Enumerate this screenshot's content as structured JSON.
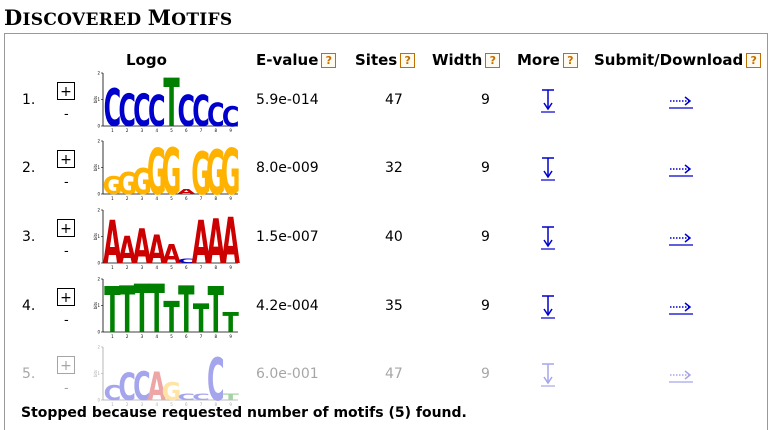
{
  "section": {
    "title_cap1": "D",
    "title_rest1": "ISCOVERED ",
    "title_cap2": "M",
    "title_rest2": "OTIFS"
  },
  "headers": {
    "logo": "Logo",
    "evalue": "E-value",
    "sites": "Sites",
    "width": "Width",
    "more": "More",
    "submit": "Submit/Download",
    "help_glyph": "?"
  },
  "toggle": {
    "plus": "+",
    "minus": "-"
  },
  "logo_axis": {
    "ylabel": "bits"
  },
  "motifs": [
    {
      "index": "1.",
      "evalue": "5.9e-014",
      "sites": "47",
      "width": "9",
      "faded": false,
      "letters": [
        [
          "C",
          0.72
        ],
        [
          "C",
          0.62
        ],
        [
          "C",
          0.62
        ],
        [
          "C",
          0.6
        ],
        [
          "T",
          0.92
        ],
        [
          "C",
          0.6
        ],
        [
          "C",
          0.6
        ],
        [
          "C",
          0.45
        ],
        [
          "C",
          0.38
        ]
      ]
    },
    {
      "index": "2.",
      "evalue": "8.0e-009",
      "sites": "32",
      "width": "9",
      "faded": false,
      "letters": [
        [
          "G",
          0.35
        ],
        [
          "G",
          0.42
        ],
        [
          "G",
          0.5
        ],
        [
          "G",
          0.88
        ],
        [
          "G",
          0.9
        ],
        [
          "A",
          0.1
        ],
        [
          "G",
          0.82
        ],
        [
          "G",
          0.86
        ],
        [
          "G",
          0.88
        ]
      ]
    },
    {
      "index": "3.",
      "evalue": "1.5e-007",
      "sites": "40",
      "width": "9",
      "faded": false,
      "letters": [
        [
          "A",
          0.82
        ],
        [
          "A",
          0.52
        ],
        [
          "A",
          0.66
        ],
        [
          "A",
          0.55
        ],
        [
          "A",
          0.36
        ],
        [
          "C",
          0.08
        ],
        [
          "A",
          0.82
        ],
        [
          "A",
          0.86
        ],
        [
          "A",
          0.88
        ]
      ]
    },
    {
      "index": "4.",
      "evalue": "4.2e-004",
      "sites": "35",
      "width": "9",
      "faded": false,
      "letters": [
        [
          "T",
          0.88
        ],
        [
          "T",
          0.9
        ],
        [
          "T",
          0.92
        ],
        [
          "T",
          0.92
        ],
        [
          "T",
          0.6
        ],
        [
          "T",
          0.9
        ],
        [
          "T",
          0.55
        ],
        [
          "T",
          0.88
        ],
        [
          "T",
          0.38
        ]
      ]
    },
    {
      "index": "5.",
      "evalue": "6.0e-001",
      "sites": "47",
      "width": "9",
      "faded": true,
      "letters": [
        [
          "C",
          0.28
        ],
        [
          "C",
          0.52
        ],
        [
          "C",
          0.55
        ],
        [
          "A",
          0.55
        ],
        [
          "G",
          0.35
        ],
        [
          "C",
          0.12
        ],
        [
          "C",
          0.12
        ],
        [
          "C",
          0.82
        ],
        [
          "T",
          0.12
        ]
      ]
    }
  ],
  "colors": {
    "A": "#cc0000",
    "C": "#0000cc",
    "G": "#ffb300",
    "T": "#008000",
    "link": "#0000cc"
  },
  "footer": "Stopped because requested number of motifs (5) found."
}
